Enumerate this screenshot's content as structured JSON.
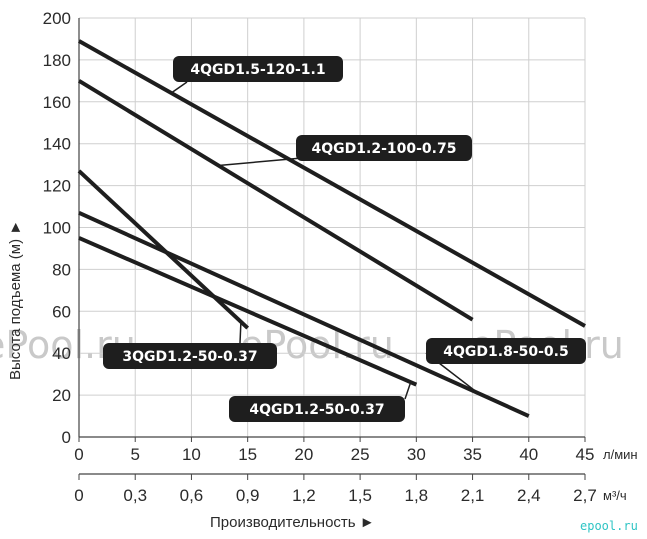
{
  "chart_data": {
    "type": "line",
    "ylabel": "Высота подъема (м) ►",
    "xlabel": "Производительность ►",
    "x_unit_primary": "л/мин",
    "x_unit_secondary": "м³/ч",
    "xlim": [
      0,
      45
    ],
    "ylim": [
      0,
      200
    ],
    "x_ticks": [
      "0",
      "5",
      "10",
      "15",
      "20",
      "25",
      "30",
      "35",
      "40",
      "45"
    ],
    "x2_ticks": [
      "0",
      "0,3",
      "0,6",
      "0,9",
      "1,2",
      "1,5",
      "1,8",
      "2,1",
      "2,4",
      "2,7"
    ],
    "y_ticks": [
      "0",
      "20",
      "40",
      "60",
      "80",
      "100",
      "120",
      "140",
      "160",
      "180",
      "200"
    ],
    "series": [
      {
        "name": "4QGD1.5-120-1.1",
        "x": [
          0,
          45
        ],
        "y": [
          189,
          53
        ]
      },
      {
        "name": "4QGD1.2-100-0.75",
        "x": [
          0,
          35
        ],
        "y": [
          170,
          56
        ]
      },
      {
        "name": "3QGD1.2-50-0.37",
        "x": [
          0,
          15
        ],
        "y": [
          127,
          52
        ]
      },
      {
        "name": "4QGD1.8-50-0.5",
        "x": [
          0,
          40
        ],
        "y": [
          107,
          10
        ]
      },
      {
        "name": "4QGD1.2-50-0.37",
        "x": [
          0,
          30
        ],
        "y": [
          95,
          25
        ]
      }
    ],
    "grid": true,
    "legend": "inline labels",
    "line_color": "#1e1e1e",
    "label_bg_color": "#1e1e1e"
  },
  "watermark": "ePool.ru",
  "brand": "epool.ru"
}
